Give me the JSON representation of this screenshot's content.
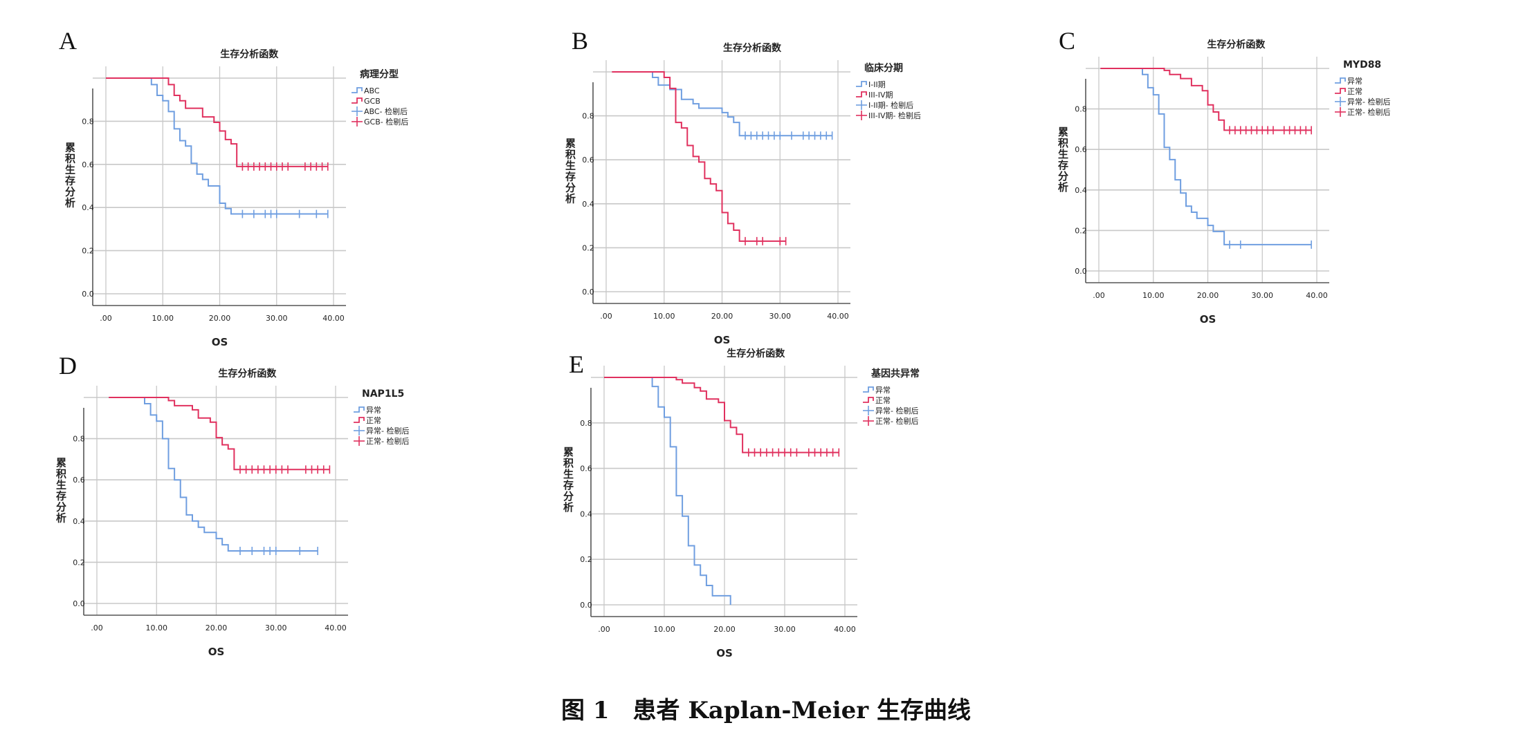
{
  "colors": {
    "abnormal_or_group1": "#6f9ee0",
    "normal_or_group2": "#e0305e",
    "grid": "#c8c8c8",
    "axis": "#555555"
  },
  "caption": "图 1　患者 Kaplan-Meier 生存曲线",
  "chart_data": [
    {
      "letter": "A",
      "type": "line",
      "title": "生存分析函数",
      "xlabel": "OS",
      "ylabel": "累积生存分析",
      "xlim": [
        0,
        40
      ],
      "ylim": [
        0,
        1.0
      ],
      "grid": true,
      "legend_position": "right",
      "xticks": [
        ".00",
        "10.00",
        "20.00",
        "30.00",
        "40.00"
      ],
      "yticks": [
        "0.0",
        "0.2",
        "0.4",
        "0.6",
        "0.8"
      ],
      "legend_title": "病理分型",
      "legend": [
        "ABC",
        "GCB",
        "ABC- 检剔后",
        "GCB- 检剔后"
      ],
      "series": [
        {
          "name": "ABC",
          "start": 0,
          "end": 39,
          "steps": [
            [
              8,
              0.97
            ],
            [
              9,
              0.92
            ],
            [
              10,
              0.895
            ],
            [
              11,
              0.845
            ],
            [
              12,
              0.765
            ],
            [
              13,
              0.71
            ],
            [
              14,
              0.685
            ],
            [
              15,
              0.605
            ],
            [
              16,
              0.555
            ],
            [
              17,
              0.53
            ],
            [
              18,
              0.5
            ],
            [
              20,
              0.42
            ],
            [
              21,
              0.395
            ],
            [
              22,
              0.37
            ]
          ],
          "censored": [
            24,
            26,
            28,
            29,
            30,
            34,
            37,
            39
          ]
        },
        {
          "name": "GCB",
          "start": 0,
          "end": 39,
          "steps": [
            [
              11,
              0.97
            ],
            [
              12,
              0.92
            ],
            [
              13,
              0.895
            ],
            [
              14,
              0.86
            ],
            [
              17,
              0.82
            ],
            [
              19,
              0.795
            ],
            [
              20,
              0.755
            ],
            [
              21,
              0.715
            ],
            [
              22,
              0.695
            ],
            [
              23,
              0.59
            ]
          ],
          "censored": [
            24,
            25,
            26,
            27,
            28,
            29,
            30,
            31,
            32,
            35,
            36,
            37,
            38,
            39
          ]
        }
      ]
    },
    {
      "letter": "B",
      "type": "line",
      "title": "生存分析函数",
      "xlabel": "OS",
      "ylabel": "累积生存分析",
      "xlim": [
        0,
        40
      ],
      "ylim": [
        0,
        1.0
      ],
      "grid": true,
      "legend_position": "right",
      "xticks": [
        ".00",
        "10.00",
        "20.00",
        "30.00",
        "40.00"
      ],
      "yticks": [
        "0.0",
        "0.2",
        "0.4",
        "0.6",
        "0.8"
      ],
      "legend_title": "临床分期",
      "legend": [
        "I-II期",
        "III-IV期",
        "I-II期- 检剔后",
        "III-IV期- 检剔后"
      ],
      "series": [
        {
          "name": "I-II期",
          "start": 1,
          "end": 39,
          "steps": [
            [
              8,
              0.975
            ],
            [
              9,
              0.94
            ],
            [
              11,
              0.92
            ],
            [
              13,
              0.875
            ],
            [
              15,
              0.855
            ],
            [
              16,
              0.835
            ],
            [
              20,
              0.815
            ],
            [
              21,
              0.795
            ],
            [
              22,
              0.77
            ],
            [
              23,
              0.71
            ]
          ],
          "censored": [
            24,
            25,
            26,
            27,
            28,
            29,
            30,
            32,
            34,
            35,
            36,
            37,
            38,
            39
          ]
        },
        {
          "name": "III-IV期",
          "start": 1,
          "end": 31,
          "steps": [
            [
              10,
              0.975
            ],
            [
              11,
              0.925
            ],
            [
              12,
              0.77
            ],
            [
              13,
              0.745
            ],
            [
              14,
              0.665
            ],
            [
              15,
              0.615
            ],
            [
              16,
              0.59
            ],
            [
              17,
              0.515
            ],
            [
              18,
              0.49
            ],
            [
              19,
              0.46
            ],
            [
              20,
              0.36
            ],
            [
              21,
              0.31
            ],
            [
              22,
              0.28
            ],
            [
              23,
              0.23
            ]
          ],
          "censored": [
            24,
            26,
            27,
            30,
            31
          ]
        }
      ]
    },
    {
      "letter": "C",
      "type": "line",
      "title": "生存分析函数",
      "xlabel": "OS",
      "ylabel": "累积生存分析",
      "xlim": [
        0,
        40
      ],
      "ylim": [
        0,
        1.0
      ],
      "grid": true,
      "legend_position": "right",
      "xticks": [
        ".00",
        "10.00",
        "20.00",
        "30.00",
        "40.00"
      ],
      "yticks": [
        "0.0",
        "0.2",
        "0.4",
        "0.6",
        "0.8"
      ],
      "legend_title": "MYD88",
      "legend": [
        "异常",
        "正常",
        "异常- 检剔后",
        "正常- 检剔后"
      ],
      "series": [
        {
          "name": "异常",
          "start": 0.3,
          "end": 39,
          "steps": [
            [
              8,
              0.97
            ],
            [
              9,
              0.905
            ],
            [
              10,
              0.87
            ],
            [
              11,
              0.775
            ],
            [
              12,
              0.61
            ],
            [
              13,
              0.55
            ],
            [
              14,
              0.45
            ],
            [
              15,
              0.385
            ],
            [
              16,
              0.32
            ],
            [
              17,
              0.29
            ],
            [
              18,
              0.26
            ],
            [
              20,
              0.225
            ],
            [
              21,
              0.195
            ],
            [
              23,
              0.13
            ]
          ],
          "censored": [
            24,
            26,
            39
          ]
        },
        {
          "name": "正常",
          "start": 0.3,
          "end": 39,
          "steps": [
            [
              12,
              0.99
            ],
            [
              13,
              0.97
            ],
            [
              15,
              0.95
            ],
            [
              17,
              0.915
            ],
            [
              19,
              0.89
            ],
            [
              20,
              0.82
            ],
            [
              21,
              0.785
            ],
            [
              22,
              0.745
            ],
            [
              23,
              0.695
            ]
          ],
          "censored": [
            24,
            25,
            26,
            27,
            28,
            29,
            30,
            31,
            32,
            34,
            35,
            36,
            37,
            38,
            39
          ]
        }
      ]
    },
    {
      "letter": "D",
      "type": "line",
      "title": "生存分析函数",
      "xlabel": "OS",
      "ylabel": "累积生存分析",
      "xlim": [
        0,
        40
      ],
      "ylim": [
        0,
        1.0
      ],
      "grid": true,
      "legend_position": "right",
      "xticks": [
        ".00",
        "10.00",
        "20.00",
        "30.00",
        "40.00"
      ],
      "yticks": [
        "0.0",
        "0.2",
        "0.4",
        "0.6",
        "0.8"
      ],
      "legend_title": "NAP1L5",
      "legend": [
        "异常",
        "正常",
        "异常- 检剔后",
        "正常- 检剔后"
      ],
      "series": [
        {
          "name": "异常",
          "start": 2,
          "end": 37,
          "steps": [
            [
              8,
              0.97
            ],
            [
              9,
              0.915
            ],
            [
              10,
              0.885
            ],
            [
              11,
              0.8
            ],
            [
              12,
              0.655
            ],
            [
              13,
              0.6
            ],
            [
              14,
              0.515
            ],
            [
              15,
              0.43
            ],
            [
              16,
              0.4
            ],
            [
              17,
              0.37
            ],
            [
              18,
              0.345
            ],
            [
              20,
              0.315
            ],
            [
              21,
              0.285
            ],
            [
              22,
              0.255
            ]
          ],
          "censored": [
            24,
            26,
            28,
            29,
            30,
            34,
            37
          ]
        },
        {
          "name": "正常",
          "start": 2,
          "end": 39,
          "steps": [
            [
              12,
              0.985
            ],
            [
              13,
              0.96
            ],
            [
              16,
              0.94
            ],
            [
              17,
              0.9
            ],
            [
              19,
              0.88
            ],
            [
              20,
              0.805
            ],
            [
              21,
              0.77
            ],
            [
              22,
              0.75
            ],
            [
              23,
              0.65
            ]
          ],
          "censored": [
            24,
            25,
            26,
            27,
            28,
            29,
            30,
            31,
            32,
            35,
            36,
            37,
            38,
            39
          ]
        }
      ]
    },
    {
      "letter": "E",
      "type": "line",
      "title": "生存分析函数",
      "xlabel": "OS",
      "ylabel": "累积生存分析",
      "xlim": [
        0,
        40
      ],
      "ylim": [
        0,
        1.0
      ],
      "grid": true,
      "legend_position": "right",
      "xticks": [
        ".00",
        "10.00",
        "20.00",
        "30.00",
        "40.00"
      ],
      "yticks": [
        "0.0",
        "0.2",
        "0.4",
        "0.6",
        "0.8"
      ],
      "legend_title": "基因共异常",
      "legend": [
        "异常",
        "正常",
        "异常- 检剔后",
        "正常- 检剔后"
      ],
      "series": [
        {
          "name": "异常",
          "start": 0,
          "end": 21,
          "steps": [
            [
              8,
              0.96
            ],
            [
              9,
              0.87
            ],
            [
              10,
              0.825
            ],
            [
              11,
              0.695
            ],
            [
              12,
              0.48
            ],
            [
              13,
              0.39
            ],
            [
              14,
              0.26
            ],
            [
              15,
              0.175
            ],
            [
              16,
              0.13
            ],
            [
              17,
              0.085
            ],
            [
              18,
              0.04
            ],
            [
              21,
              0.0
            ]
          ],
          "censored": []
        },
        {
          "name": "正常",
          "start": 0,
          "end": 39,
          "steps": [
            [
              12,
              0.99
            ],
            [
              13,
              0.975
            ],
            [
              15,
              0.955
            ],
            [
              16,
              0.94
            ],
            [
              17,
              0.905
            ],
            [
              19,
              0.89
            ],
            [
              20,
              0.81
            ],
            [
              21,
              0.78
            ],
            [
              22,
              0.75
            ],
            [
              23,
              0.67
            ]
          ],
          "censored": [
            24,
            25,
            26,
            27,
            28,
            29,
            30,
            31,
            32,
            34,
            35,
            36,
            37,
            38,
            39
          ]
        }
      ]
    }
  ]
}
